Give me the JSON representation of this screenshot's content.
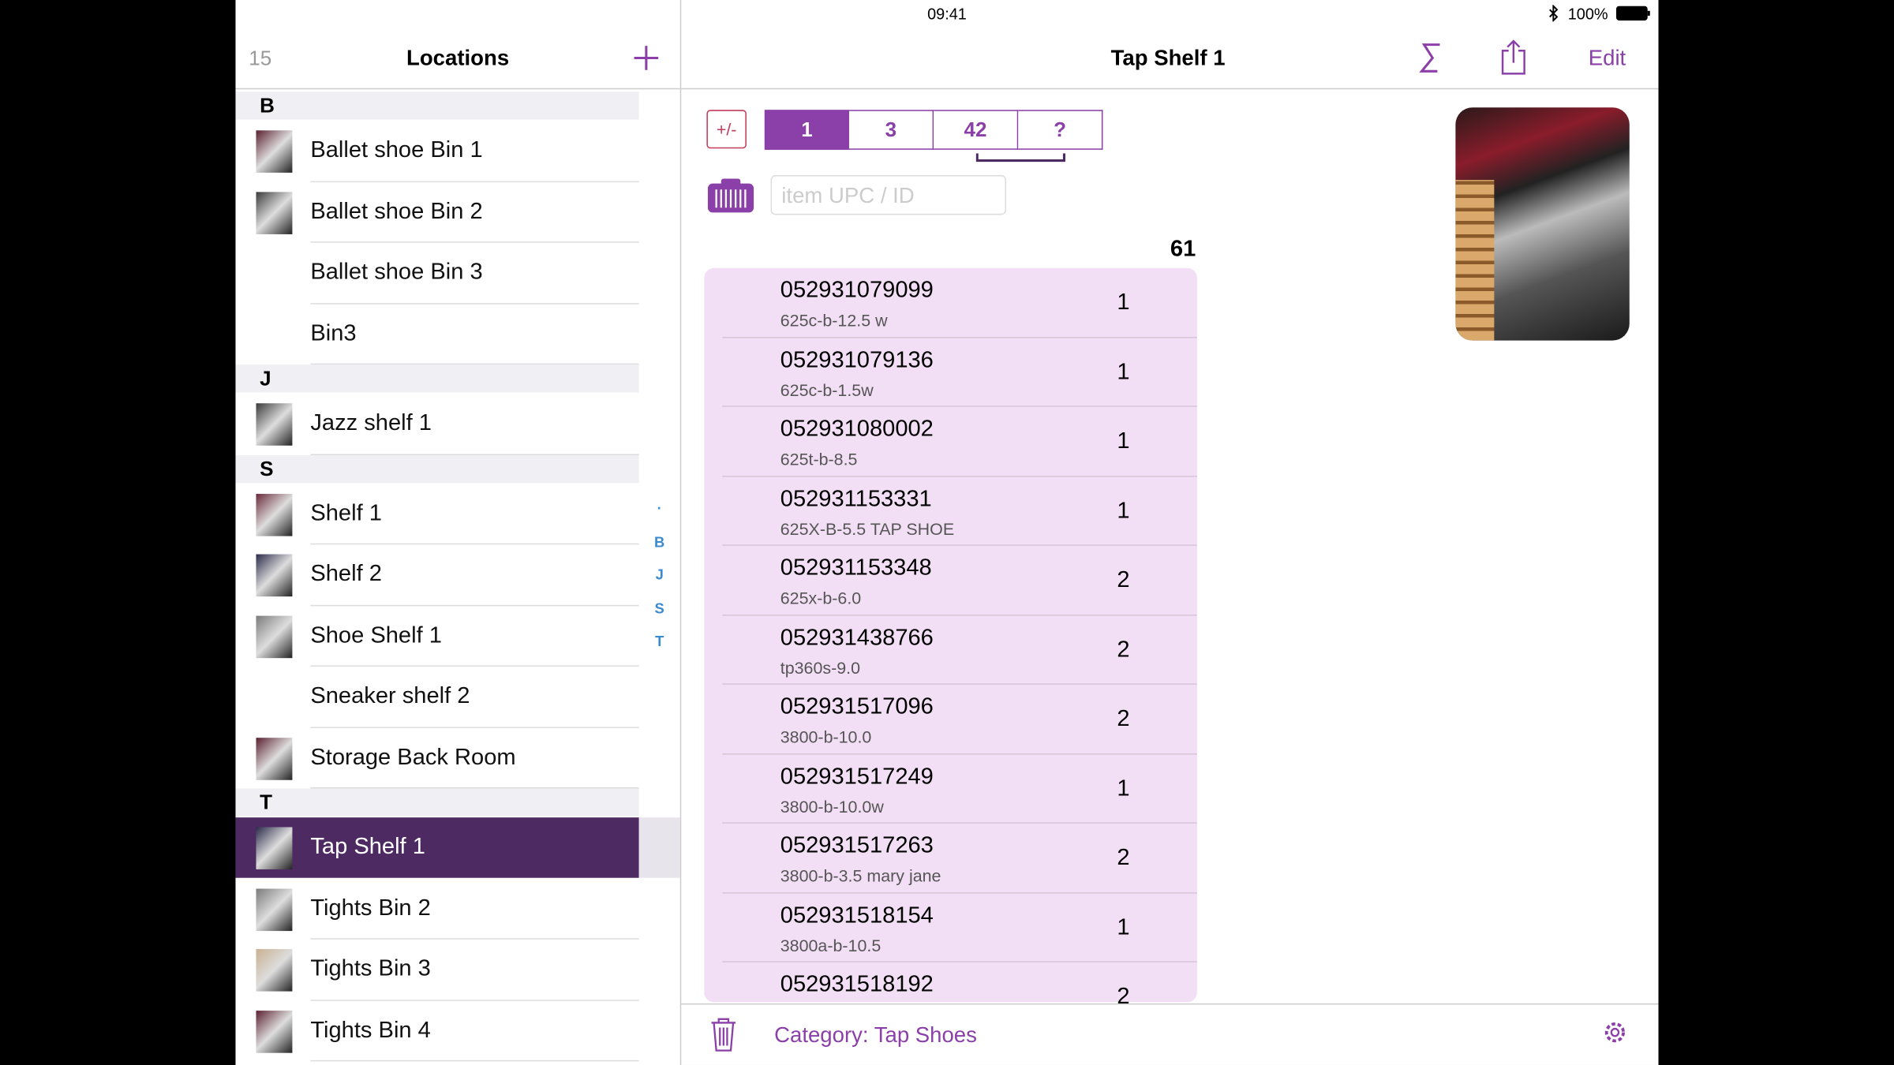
{
  "status_bar": {
    "time": "09:41",
    "battery": "100%"
  },
  "sidebar": {
    "count": "15",
    "title": "Locations",
    "sections": [
      {
        "letter": "B",
        "items": [
          {
            "name": "Ballet shoe Bin 1",
            "thumb": true
          },
          {
            "name": "Ballet shoe Bin 2",
            "thumb": true
          },
          {
            "name": "Ballet shoe Bin 3",
            "thumb": false
          },
          {
            "name": "Bin3",
            "thumb": false
          }
        ]
      },
      {
        "letter": "J",
        "items": [
          {
            "name": "Jazz shelf 1",
            "thumb": true
          }
        ]
      },
      {
        "letter": "S",
        "items": [
          {
            "name": "Shelf 1",
            "thumb": true
          },
          {
            "name": "Shelf 2",
            "thumb": true
          },
          {
            "name": "Shoe Shelf 1",
            "thumb": true
          },
          {
            "name": "Sneaker shelf 2",
            "thumb": false
          },
          {
            "name": "Storage Back Room",
            "thumb": true
          }
        ]
      },
      {
        "letter": "T",
        "items": [
          {
            "name": "Tap Shelf 1",
            "thumb": true,
            "selected": true
          },
          {
            "name": "Tights Bin 2",
            "thumb": true
          },
          {
            "name": "Tights Bin 3",
            "thumb": true
          },
          {
            "name": "Tights Bin 4",
            "thumb": true
          }
        ]
      }
    ],
    "index": [
      "·",
      "B",
      "J",
      "S",
      "T"
    ]
  },
  "detail": {
    "title": "Tap Shelf 1",
    "edit": "Edit",
    "toggle": "+/-",
    "segments": [
      "1",
      "3",
      "42",
      "?"
    ],
    "search_placeholder": "item UPC / ID",
    "total": "61",
    "items": [
      {
        "upc": "052931079099",
        "desc": "625c-b-12.5 w",
        "qty": "1"
      },
      {
        "upc": "052931079136",
        "desc": "625c-b-1.5w",
        "qty": "1"
      },
      {
        "upc": "052931080002",
        "desc": "625t-b-8.5",
        "qty": "1"
      },
      {
        "upc": "052931153331",
        "desc": "625X-B-5.5 TAP SHOE",
        "qty": "1"
      },
      {
        "upc": "052931153348",
        "desc": "625x-b-6.0",
        "qty": "2"
      },
      {
        "upc": "052931438766",
        "desc": "tp360s-9.0",
        "qty": "2"
      },
      {
        "upc": "052931517096",
        "desc": "3800-b-10.0",
        "qty": "2"
      },
      {
        "upc": "052931517249",
        "desc": "3800-b-10.0w",
        "qty": "1"
      },
      {
        "upc": "052931517263",
        "desc": "3800-b-3.5 mary jane",
        "qty": "2"
      },
      {
        "upc": "052931518154",
        "desc": "3800a-b-10.5",
        "qty": "1"
      },
      {
        "upc": "052931518192",
        "qty": "2"
      }
    ],
    "category": "Category: Tap Shoes"
  }
}
